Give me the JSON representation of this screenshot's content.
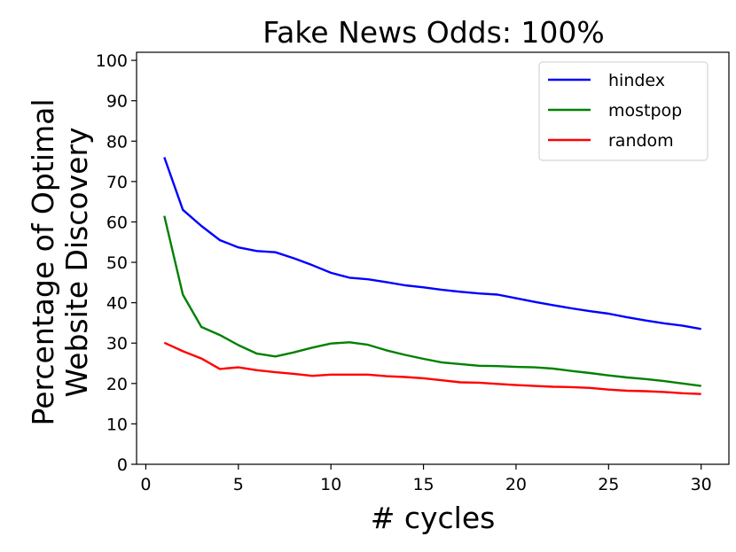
{
  "chart_data": {
    "type": "line",
    "title": "Fake News Odds: 100%",
    "xlabel": "# cycles",
    "ylabel_lines": [
      "Percentage of Optimal",
      "Website Discovery"
    ],
    "xlim": [
      -0.5,
      31.5
    ],
    "ylim": [
      0,
      102
    ],
    "xticks": [
      0,
      5,
      10,
      15,
      20,
      25,
      30
    ],
    "yticks": [
      0,
      10,
      20,
      30,
      40,
      50,
      60,
      70,
      80,
      90,
      100
    ],
    "grid": false,
    "legend_position": "top-right",
    "x": [
      1,
      2,
      3,
      4,
      5,
      6,
      7,
      8,
      9,
      10,
      11,
      12,
      13,
      14,
      15,
      16,
      17,
      18,
      19,
      20,
      21,
      22,
      23,
      24,
      25,
      26,
      27,
      28,
      29,
      30
    ],
    "series": [
      {
        "name": "hindex",
        "color": "#0000ff",
        "values": [
          76,
          63,
          59,
          55.5,
          53.7,
          52.8,
          52.5,
          51,
          49.3,
          47.4,
          46.2,
          45.8,
          45.1,
          44.3,
          43.8,
          43.2,
          42.7,
          42.3,
          42,
          41.1,
          40.2,
          39.4,
          38.6,
          37.9,
          37.3,
          36.4,
          35.6,
          34.9,
          34.3,
          33.5
        ]
      },
      {
        "name": "mostpop",
        "color": "#008000",
        "values": [
          61.5,
          42,
          34,
          32,
          29.5,
          27.4,
          26.7,
          27.7,
          28.9,
          29.9,
          30.2,
          29.6,
          28.2,
          27.1,
          26.1,
          25.2,
          24.8,
          24.4,
          24.3,
          24.1,
          24,
          23.7,
          23.1,
          22.6,
          22,
          21.5,
          21.1,
          20.6,
          20,
          19.4
        ]
      },
      {
        "name": "random",
        "color": "#ff0000",
        "values": [
          30.1,
          28,
          26.2,
          23.6,
          24,
          23.3,
          22.8,
          22.4,
          21.9,
          22.2,
          22.2,
          22.2,
          21.8,
          21.6,
          21.3,
          20.8,
          20.3,
          20.2,
          19.9,
          19.6,
          19.4,
          19.2,
          19.1,
          18.9,
          18.5,
          18.2,
          18.1,
          17.9,
          17.6,
          17.4
        ]
      }
    ]
  }
}
